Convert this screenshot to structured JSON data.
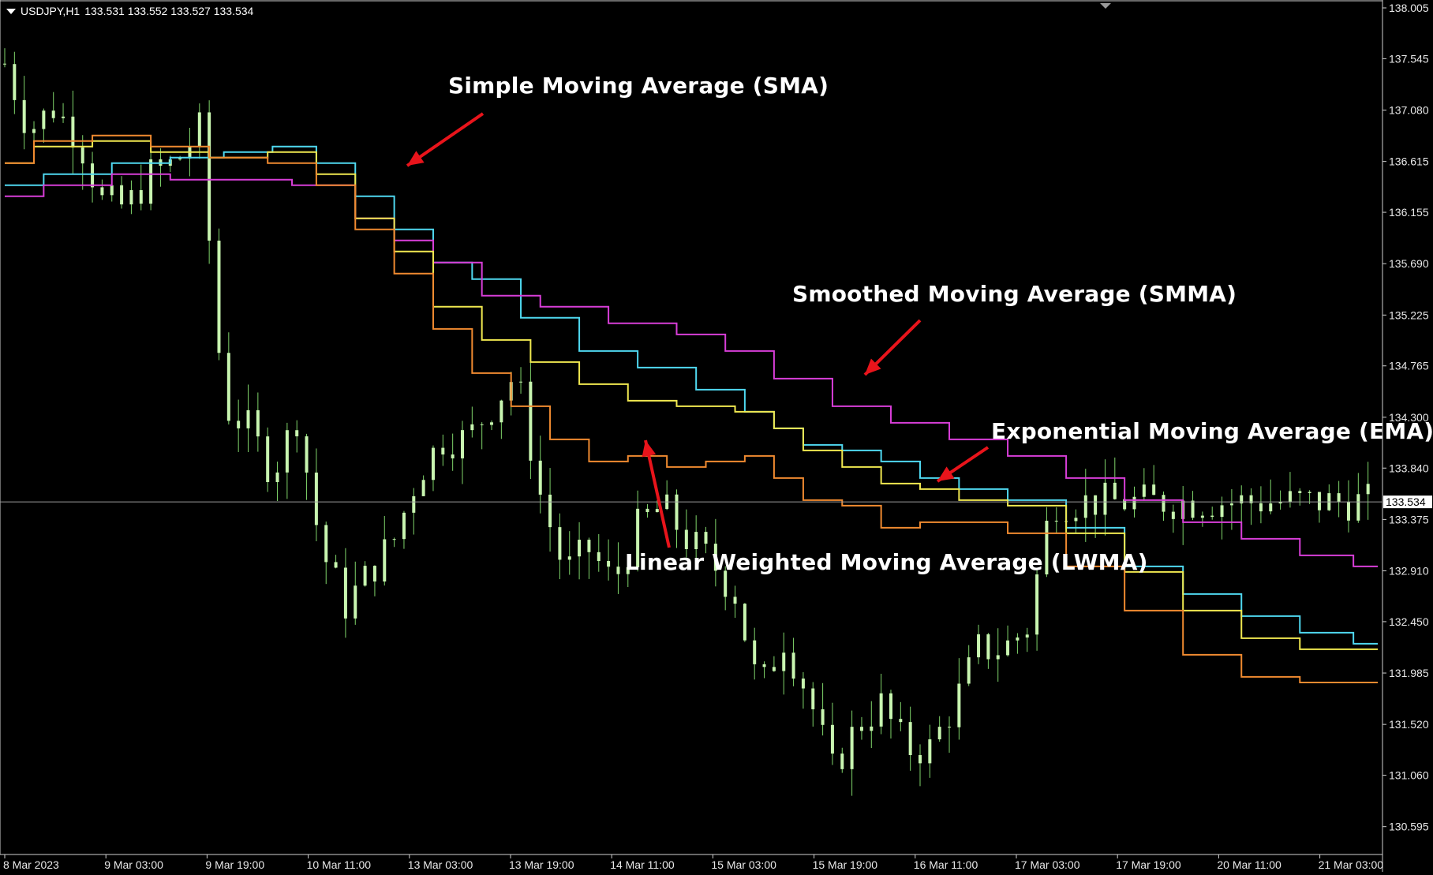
{
  "header": {
    "symbol": "USDJPY,H1",
    "ohlc": "133.531 133.552 133.527 133.534"
  },
  "colors": {
    "background": "#000000",
    "candle": "#c8f5b0",
    "wick": "#7fd46a",
    "sma": "#4fd8f0",
    "smma": "#d83ed8",
    "ema": "#f0e850",
    "lwma": "#f08a30",
    "arrow": "#e8141b",
    "price_line": "#9a9a9a"
  },
  "annotations": {
    "sma": "Simple Moving Average (SMA)",
    "smma": "Smoothed Moving Average (SMMA)",
    "ema": "Exponential Moving Average (EMA)",
    "lwma": "Linear Weighted Moving Average (LWMA)"
  },
  "chart_data": {
    "type": "line",
    "title": "USDJPY,H1",
    "y_axis_ticks": [
      138.005,
      137.545,
      137.08,
      136.615,
      136.155,
      135.69,
      135.225,
      134.765,
      134.3,
      133.84,
      133.375,
      132.91,
      132.45,
      131.985,
      131.52,
      131.06,
      130.595
    ],
    "ylim": [
      130.3,
      138.005
    ],
    "current_price": 133.534,
    "x_axis_ticks": [
      "8 Mar 2023",
      "9 Mar 03:00",
      "9 Mar 19:00",
      "10 Mar 11:00",
      "13 Mar 03:00",
      "13 Mar 19:00",
      "14 Mar 11:00",
      "15 Mar 03:00",
      "15 Mar 19:00",
      "16 Mar 11:00",
      "17 Mar 03:00",
      "17 Mar 19:00",
      "20 Mar 11:00",
      "21 Mar 03:00"
    ],
    "x": [
      0,
      5,
      10,
      15,
      20,
      25,
      30,
      35,
      40,
      45,
      50,
      55,
      60,
      65,
      70,
      75,
      80,
      85,
      90,
      95,
      100,
      105,
      110,
      115,
      120,
      125,
      130,
      135,
      140,
      145,
      150,
      155,
      160,
      165,
      170,
      175,
      180,
      185,
      190,
      195,
      200,
      205,
      210,
      215,
      220,
      225,
      230,
      235,
      240,
      245,
      250,
      255,
      260,
      265,
      270,
      275,
      280
    ],
    "price": [
      137.5,
      136.9,
      137.1,
      136.85,
      136.25,
      136.2,
      136.5,
      136.6,
      136.9,
      134.4,
      134.2,
      133.8,
      134.3,
      133.1,
      132.6,
      132.9,
      133.2,
      133.8,
      134.1,
      134.1,
      134.4,
      134.7,
      133.6,
      132.9,
      133.1,
      132.8,
      133.3,
      133.5,
      133.2,
      133.0,
      132.7,
      131.8,
      132.3,
      131.8,
      131.1,
      131.5,
      131.7,
      131.3,
      131.3,
      131.7,
      132.2,
      132.2,
      132.4,
      133.534,
      133.534,
      133.534,
      133.534,
      133.534,
      133.534,
      133.534,
      133.534,
      133.534,
      133.534,
      133.534,
      133.534,
      133.534,
      133.534
    ],
    "series": [
      {
        "name": "Simple Moving Average (SMA)",
        "key": "sma",
        "points": [
          [
            0,
            136.4
          ],
          [
            8,
            136.5
          ],
          [
            14,
            136.6
          ],
          [
            20,
            136.65
          ],
          [
            25,
            136.7
          ],
          [
            30,
            136.75
          ],
          [
            34,
            136.6
          ],
          [
            38,
            136.3
          ],
          [
            42,
            136.0
          ],
          [
            46,
            135.7
          ],
          [
            50,
            135.55
          ],
          [
            56,
            135.2
          ],
          [
            62,
            134.9
          ],
          [
            68,
            134.75
          ],
          [
            74,
            134.55
          ],
          [
            78,
            134.35
          ],
          [
            80,
            134.2
          ],
          [
            84,
            134.05
          ],
          [
            88,
            134.0
          ],
          [
            92,
            133.9
          ],
          [
            96,
            133.75
          ],
          [
            100,
            133.65
          ],
          [
            106,
            133.55
          ],
          [
            112,
            133.3
          ],
          [
            118,
            132.95
          ],
          [
            124,
            132.7
          ],
          [
            130,
            132.5
          ],
          [
            136,
            132.35
          ],
          [
            141,
            132.25
          ]
        ]
      },
      {
        "name": "Smoothed Moving Average (SMMA)",
        "key": "smma",
        "points": [
          [
            0,
            136.3
          ],
          [
            8,
            136.4
          ],
          [
            14,
            136.5
          ],
          [
            20,
            136.45
          ],
          [
            25,
            136.45
          ],
          [
            34,
            136.4
          ],
          [
            38,
            136.1
          ],
          [
            42,
            135.9
          ],
          [
            46,
            135.7
          ],
          [
            52,
            135.4
          ],
          [
            58,
            135.3
          ],
          [
            66,
            135.15
          ],
          [
            72,
            135.05
          ],
          [
            76,
            134.9
          ],
          [
            82,
            134.65
          ],
          [
            88,
            134.4
          ],
          [
            94,
            134.25
          ],
          [
            100,
            134.1
          ],
          [
            106,
            133.95
          ],
          [
            112,
            133.75
          ],
          [
            118,
            133.55
          ],
          [
            124,
            133.35
          ],
          [
            130,
            133.2
          ],
          [
            136,
            133.05
          ],
          [
            141,
            132.95
          ]
        ]
      },
      {
        "name": "Exponential Moving Average (EMA)",
        "key": "ema",
        "points": [
          [
            0,
            136.6
          ],
          [
            6,
            136.75
          ],
          [
            12,
            136.8
          ],
          [
            18,
            136.7
          ],
          [
            24,
            136.65
          ],
          [
            30,
            136.7
          ],
          [
            34,
            136.5
          ],
          [
            38,
            136.1
          ],
          [
            42,
            135.8
          ],
          [
            46,
            135.3
          ],
          [
            52,
            135.0
          ],
          [
            56,
            134.8
          ],
          [
            62,
            134.6
          ],
          [
            66,
            134.45
          ],
          [
            72,
            134.4
          ],
          [
            78,
            134.35
          ],
          [
            80,
            134.2
          ],
          [
            84,
            134.0
          ],
          [
            88,
            133.85
          ],
          [
            92,
            133.7
          ],
          [
            96,
            133.65
          ],
          [
            100,
            133.55
          ],
          [
            106,
            133.5
          ],
          [
            112,
            133.25
          ],
          [
            118,
            132.9
          ],
          [
            124,
            132.55
          ],
          [
            130,
            132.3
          ],
          [
            136,
            132.2
          ],
          [
            141,
            132.2
          ]
        ]
      },
      {
        "name": "Linear Weighted Moving Average (LWMA)",
        "key": "lwma",
        "points": [
          [
            0,
            136.6
          ],
          [
            6,
            136.8
          ],
          [
            12,
            136.85
          ],
          [
            18,
            136.75
          ],
          [
            24,
            136.65
          ],
          [
            30,
            136.6
          ],
          [
            34,
            136.4
          ],
          [
            38,
            136.0
          ],
          [
            42,
            135.6
          ],
          [
            46,
            135.1
          ],
          [
            50,
            134.7
          ],
          [
            54,
            134.4
          ],
          [
            58,
            134.1
          ],
          [
            62,
            133.9
          ],
          [
            66,
            133.95
          ],
          [
            70,
            133.85
          ],
          [
            74,
            133.9
          ],
          [
            78,
            133.95
          ],
          [
            80,
            133.75
          ],
          [
            84,
            133.55
          ],
          [
            88,
            133.5
          ],
          [
            92,
            133.3
          ],
          [
            96,
            133.35
          ],
          [
            100,
            133.35
          ],
          [
            106,
            133.25
          ],
          [
            112,
            132.95
          ],
          [
            118,
            132.55
          ],
          [
            124,
            132.15
          ],
          [
            130,
            131.95
          ],
          [
            136,
            131.9
          ],
          [
            141,
            131.9
          ]
        ]
      }
    ],
    "grid": false
  },
  "x_labels": [
    "8 Mar 2023",
    "9 Mar 03:00",
    "9 Mar 19:00",
    "10 Mar 11:00",
    "13 Mar 03:00",
    "13 Mar 19:00",
    "14 Mar 11:00",
    "15 Mar 03:00",
    "15 Mar 19:00",
    "16 Mar 11:00",
    "17 Mar 03:00",
    "17 Mar 19:00",
    "20 Mar 11:00",
    "21 Mar 03:00"
  ],
  "price_tag": "133.534"
}
